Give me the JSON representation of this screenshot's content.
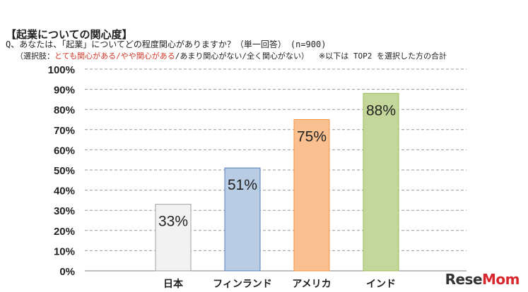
{
  "header": {
    "title": "【起業についての関心度】",
    "question": "Q、あなたは、「起業」についてどの程度関心がありますか？（単一回答）　(n=900)",
    "choices_prefix": "（選択肢：",
    "choices_highlight": "とても関心がある/やや関心がある",
    "choices_rest": "/あまり関心がない/全く関心がない）",
    "note": "※以下は TOP2 を選択した方の合計"
  },
  "chart_data": {
    "type": "bar",
    "categories": [
      "日本",
      "フィンランド",
      "アメリカ",
      "インド"
    ],
    "values": [
      33,
      51,
      75,
      88
    ],
    "value_labels": [
      "33%",
      "51%",
      "75%",
      "88%"
    ],
    "ylim": [
      0,
      100
    ],
    "yticks": [
      "0%",
      "10%",
      "20%",
      "30%",
      "40%",
      "50%",
      "60%",
      "70%",
      "80%",
      "90%",
      "100%"
    ],
    "grid": true,
    "colors": [
      "#f2f2f2",
      "#b8cce4",
      "#fac090",
      "#c4d79b"
    ],
    "border_colors": [
      "#a0a0a0",
      "#4f81bd",
      "#f79646",
      "#9bbb59"
    ]
  },
  "brand": {
    "part1": "Rese",
    "part2": "Mom"
  }
}
